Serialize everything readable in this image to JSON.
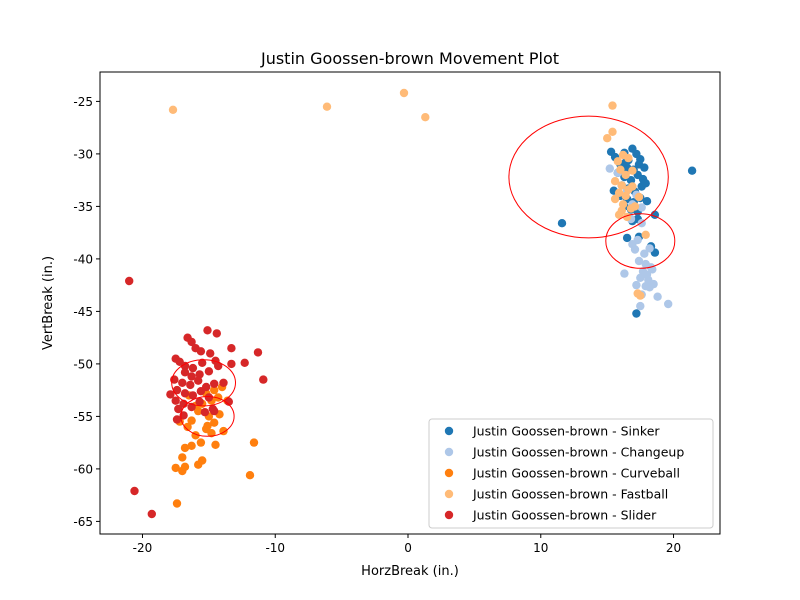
{
  "chart_data": {
    "type": "scatter",
    "title": "Justin Goossen-brown Movement Plot",
    "xlabel": "HorzBreak (in.)",
    "ylabel": "VertBreak (in.)",
    "xlim": [
      -23.2,
      23.5
    ],
    "ylim": [
      -66.2,
      -22.2
    ],
    "xticks": [
      -20,
      -10,
      0,
      10,
      20
    ],
    "yticks": [
      -25,
      -30,
      -35,
      -40,
      -45,
      -50,
      -55,
      -60,
      -65
    ],
    "legend_position": "lower right",
    "series": [
      {
        "name": "Justin Goossen-brown - Sinker",
        "color": "#1f77b4",
        "points": [
          [
            15.3,
            -29.8
          ],
          [
            15.6,
            -30.3
          ],
          [
            16.3,
            -29.9
          ],
          [
            16.6,
            -30.6
          ],
          [
            16.9,
            -29.5
          ],
          [
            17.2,
            -30.0
          ],
          [
            17.5,
            -30.5
          ],
          [
            16.0,
            -31.0
          ],
          [
            16.5,
            -31.3
          ],
          [
            17.0,
            -31.5
          ],
          [
            17.4,
            -31.0
          ],
          [
            17.8,
            -31.3
          ],
          [
            15.8,
            -31.8
          ],
          [
            16.3,
            -32.2
          ],
          [
            16.8,
            -32.5
          ],
          [
            17.3,
            -32.0
          ],
          [
            17.7,
            -32.4
          ],
          [
            16.1,
            -33.0
          ],
          [
            16.6,
            -33.3
          ],
          [
            17.1,
            -33.6
          ],
          [
            17.6,
            -33.1
          ],
          [
            15.5,
            -33.5
          ],
          [
            16.0,
            -34.0
          ],
          [
            16.5,
            -34.3
          ],
          [
            17.0,
            -34.6
          ],
          [
            17.5,
            -34.2
          ],
          [
            18.0,
            -34.5
          ],
          [
            16.3,
            -35.0
          ],
          [
            16.8,
            -35.3
          ],
          [
            17.3,
            -35.5
          ],
          [
            16.9,
            -36.4
          ],
          [
            17.3,
            -36.2
          ],
          [
            18.6,
            -35.8
          ],
          [
            16.5,
            -38.0
          ],
          [
            17.4,
            -37.9
          ],
          [
            18.3,
            -38.8
          ],
          [
            18.6,
            -39.4
          ],
          [
            11.6,
            -36.6
          ],
          [
            21.4,
            -31.6
          ],
          [
            17.2,
            -45.2
          ],
          [
            16.4,
            -30.8
          ],
          [
            17.9,
            -32.8
          ]
        ]
      },
      {
        "name": "Justin Goossen-brown - Changeup",
        "color": "#aec7e8",
        "points": [
          [
            15.2,
            -31.4
          ],
          [
            15.8,
            -31.8
          ],
          [
            16.5,
            -33.5
          ],
          [
            17.2,
            -33.9
          ],
          [
            17.6,
            -35.1
          ],
          [
            16.8,
            -36.2
          ],
          [
            17.3,
            -38.2
          ],
          [
            17.8,
            -39.5
          ],
          [
            16.9,
            -38.6
          ],
          [
            17.1,
            -39.1
          ],
          [
            17.4,
            -40.2
          ],
          [
            17.9,
            -40.5
          ],
          [
            18.3,
            -40.8
          ],
          [
            17.7,
            -41.2
          ],
          [
            18.0,
            -41.5
          ],
          [
            18.4,
            -41.0
          ],
          [
            17.5,
            -41.8
          ],
          [
            18.1,
            -42.0
          ],
          [
            18.5,
            -42.4
          ],
          [
            17.9,
            -42.6
          ],
          [
            18.2,
            -42.7
          ],
          [
            17.2,
            -42.5
          ],
          [
            16.3,
            -41.4
          ],
          [
            17.6,
            -43.4
          ],
          [
            18.8,
            -43.6
          ],
          [
            19.6,
            -44.3
          ],
          [
            17.5,
            -44.5
          ],
          [
            18.2,
            -39.0
          ],
          [
            16.9,
            -34.8
          ],
          [
            17.6,
            -36.6
          ]
        ]
      },
      {
        "name": "Justin Goossen-brown - Curveball",
        "color": "#ff7f0e",
        "points": [
          [
            -17.5,
            -59.9
          ],
          [
            -17.0,
            -60.2
          ],
          [
            -16.8,
            -59.8
          ],
          [
            -15.8,
            -59.6
          ],
          [
            -15.5,
            -59.2
          ],
          [
            -17.0,
            -58.9
          ],
          [
            -16.8,
            -58.0
          ],
          [
            -16.3,
            -57.8
          ],
          [
            -15.6,
            -57.5
          ],
          [
            -14.5,
            -57.7
          ],
          [
            -13.9,
            -56.4
          ],
          [
            -14.8,
            -56.6
          ],
          [
            -15.2,
            -56.2
          ],
          [
            -16.0,
            -56.8
          ],
          [
            -16.6,
            -56.0
          ],
          [
            -17.2,
            -55.5
          ],
          [
            -16.3,
            -55.4
          ],
          [
            -15.0,
            -55.0
          ],
          [
            -14.6,
            -55.6
          ],
          [
            -14.2,
            -54.8
          ],
          [
            -15.8,
            -54.5
          ],
          [
            -16.0,
            -54.0
          ],
          [
            -15.5,
            -53.8
          ],
          [
            -14.8,
            -53.5
          ],
          [
            -14.3,
            -53.2
          ],
          [
            -13.6,
            -53.5
          ],
          [
            -15.2,
            -52.8
          ],
          [
            -14.6,
            -52.5
          ],
          [
            -14.0,
            -52.2
          ],
          [
            -16.5,
            -53.0
          ],
          [
            -11.9,
            -60.6
          ],
          [
            -11.6,
            -57.5
          ],
          [
            -17.4,
            -63.3
          ],
          [
            -15.1,
            -55.9
          ]
        ]
      },
      {
        "name": "Justin Goossen-brown - Fastball",
        "color": "#ffbb78",
        "points": [
          [
            -17.7,
            -25.8
          ],
          [
            -6.1,
            -25.5
          ],
          [
            -0.3,
            -24.2
          ],
          [
            1.3,
            -26.5
          ],
          [
            15.4,
            -25.4
          ],
          [
            15.4,
            -27.9
          ],
          [
            15.0,
            -28.5
          ],
          [
            15.8,
            -30.7
          ],
          [
            16.2,
            -30.1
          ],
          [
            16.6,
            -30.4
          ],
          [
            16.0,
            -31.5
          ],
          [
            16.4,
            -32.0
          ],
          [
            16.9,
            -31.6
          ],
          [
            15.6,
            -32.6
          ],
          [
            16.1,
            -33.0
          ],
          [
            16.6,
            -33.4
          ],
          [
            15.9,
            -33.7
          ],
          [
            16.4,
            -34.0
          ],
          [
            16.9,
            -33.1
          ],
          [
            15.6,
            -34.3
          ],
          [
            16.2,
            -34.8
          ],
          [
            16.8,
            -35.2
          ],
          [
            16.1,
            -35.4
          ],
          [
            15.9,
            -35.8
          ],
          [
            16.5,
            -36.0
          ],
          [
            17.1,
            -35.0
          ],
          [
            17.4,
            -34.1
          ],
          [
            17.9,
            -37.7
          ],
          [
            17.3,
            -43.3
          ],
          [
            17.5,
            -43.5
          ]
        ]
      },
      {
        "name": "Justin Goossen-brown - Slider",
        "color": "#d62728",
        "points": [
          [
            -21.0,
            -42.1
          ],
          [
            -20.6,
            -62.1
          ],
          [
            -19.3,
            -64.3
          ],
          [
            -16.6,
            -47.5
          ],
          [
            -16.3,
            -47.9
          ],
          [
            -15.1,
            -46.8
          ],
          [
            -14.4,
            -47.1
          ],
          [
            -16.0,
            -48.5
          ],
          [
            -15.6,
            -48.8
          ],
          [
            -14.9,
            -49.0
          ],
          [
            -17.5,
            -49.5
          ],
          [
            -17.2,
            -49.8
          ],
          [
            -16.8,
            -50.2
          ],
          [
            -16.2,
            -50.4
          ],
          [
            -15.5,
            -49.9
          ],
          [
            -14.5,
            -49.7
          ],
          [
            -14.3,
            -50.2
          ],
          [
            -13.3,
            -50.0
          ],
          [
            -12.3,
            -49.9
          ],
          [
            -11.3,
            -48.9
          ],
          [
            -13.3,
            -48.5
          ],
          [
            -16.8,
            -50.8
          ],
          [
            -16.3,
            -51.2
          ],
          [
            -15.7,
            -51.0
          ],
          [
            -15.0,
            -50.7
          ],
          [
            -17.6,
            -51.5
          ],
          [
            -17.0,
            -51.8
          ],
          [
            -16.4,
            -52.0
          ],
          [
            -15.8,
            -51.6
          ],
          [
            -15.2,
            -52.2
          ],
          [
            -14.6,
            -51.9
          ],
          [
            -13.9,
            -51.8
          ],
          [
            -10.9,
            -51.5
          ],
          [
            -17.4,
            -52.5
          ],
          [
            -16.8,
            -52.8
          ],
          [
            -16.2,
            -53.0
          ],
          [
            -15.6,
            -52.6
          ],
          [
            -15.0,
            -53.2
          ],
          [
            -17.9,
            -52.9
          ],
          [
            -17.5,
            -53.5
          ],
          [
            -16.9,
            -53.8
          ],
          [
            -16.3,
            -54.1
          ],
          [
            -15.7,
            -53.6
          ],
          [
            -14.7,
            -54.3
          ],
          [
            -13.5,
            -53.6
          ],
          [
            -17.3,
            -54.3
          ],
          [
            -16.9,
            -54.9
          ],
          [
            -17.4,
            -55.3
          ],
          [
            -15.3,
            -54.6
          ],
          [
            -14.6,
            -54.5
          ]
        ]
      }
    ],
    "ellipses": [
      {
        "cx": 13.6,
        "cy": -32.2,
        "rx": 6.0,
        "ry": 5.8,
        "color": "#ff0000"
      },
      {
        "cx": 17.5,
        "cy": -38.3,
        "rx": 2.6,
        "ry": 2.6,
        "color": "#ff0000"
      },
      {
        "cx": -15.4,
        "cy": -51.8,
        "rx": 2.4,
        "ry": 2.2,
        "color": "#ff0000"
      },
      {
        "cx": -15.1,
        "cy": -55.0,
        "rx": 2.0,
        "ry": 1.9,
        "color": "#ff0000"
      }
    ]
  }
}
